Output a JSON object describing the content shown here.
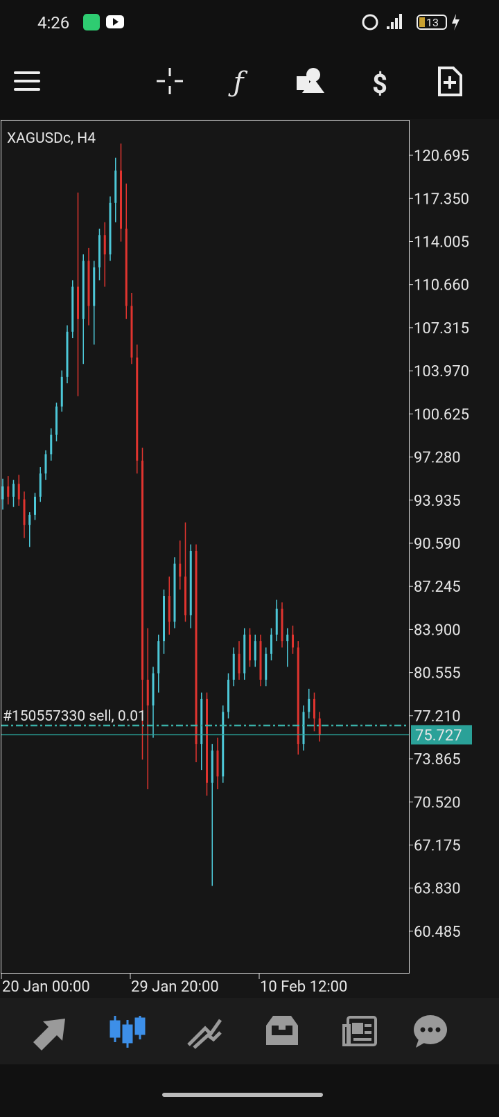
{
  "status_bar": {
    "time": "4:26",
    "battery": "13"
  },
  "chart_data": {
    "type": "candlestick",
    "title": "XAGUSDc, H4",
    "categories": [
      "20 Jan 00:00",
      null,
      null,
      null,
      null,
      null,
      null,
      null,
      null,
      null,
      null,
      null,
      null,
      null,
      null,
      null,
      null,
      null,
      null,
      null,
      null,
      null,
      null,
      null,
      "29 Jan 20:00",
      null,
      null,
      null,
      null,
      null,
      null,
      null,
      null,
      null,
      null,
      null,
      null,
      null,
      null,
      null,
      null,
      null,
      null,
      null,
      null,
      null,
      null,
      null,
      "10 Feb 12:00",
      null,
      null,
      null,
      null,
      null,
      null,
      null,
      null,
      null,
      null,
      null
    ],
    "open": [
      94.0,
      95.0,
      94.2,
      95.2,
      94.0,
      92.0,
      92.8,
      94.2,
      96.0,
      97.5,
      99.0,
      101.2,
      103.5,
      107.0,
      110.5,
      108.0,
      112.5,
      109.0,
      112.0,
      114.5,
      113.0,
      117.0,
      119.5,
      115.0,
      109.0,
      105.0,
      97.0,
      80.0,
      78.0,
      80.5,
      83.0,
      86.5,
      84.5,
      89.0,
      88.0,
      85.0,
      90.0,
      75.0,
      78.5,
      72.0,
      74.5,
      72.5,
      77.5,
      80.0,
      82.0,
      80.5,
      83.5,
      81.5,
      83.0,
      80.0,
      82.0,
      83.5,
      85.5,
      83.0,
      83.5,
      82.5,
      75.0,
      77.5,
      78.5,
      77.0
    ],
    "high": [
      95.6,
      95.8,
      95.5,
      95.9,
      94.6,
      93.0,
      94.5,
      96.5,
      97.8,
      99.5,
      101.5,
      104.0,
      107.5,
      111.0,
      117.8,
      113.0,
      113.5,
      112.5,
      115.0,
      115.5,
      117.5,
      120.5,
      121.6,
      118.5,
      110.0,
      106.0,
      98.0,
      84.0,
      81.0,
      83.5,
      87.0,
      88.0,
      89.5,
      90.8,
      92.2,
      90.5,
      90.5,
      79.0,
      79.0,
      75.0,
      75.5,
      78.0,
      80.5,
      82.5,
      83.0,
      84.0,
      84.0,
      83.5,
      83.5,
      82.5,
      84.0,
      86.2,
      86.0,
      84.0,
      84.2,
      83.0,
      78.0,
      79.3,
      79.0,
      77.5
    ],
    "low": [
      93.2,
      93.6,
      93.4,
      93.5,
      91.0,
      90.3,
      92.4,
      93.8,
      95.5,
      97.0,
      98.5,
      100.8,
      103.0,
      106.5,
      102.0,
      104.5,
      107.5,
      106.0,
      111.0,
      110.5,
      112.5,
      115.5,
      114.0,
      108.0,
      104.5,
      96.0,
      73.8,
      71.5,
      75.5,
      79.0,
      82.0,
      83.5,
      84.0,
      87.0,
      84.5,
      84.0,
      73.6,
      73.0,
      71.0,
      64.0,
      71.5,
      72.0,
      77.0,
      79.5,
      80.0,
      80.0,
      81.0,
      81.0,
      79.5,
      79.5,
      81.5,
      83.0,
      82.5,
      81.0,
      82.0,
      74.2,
      74.5,
      77.0,
      76.0,
      75.2
    ],
    "close": [
      95.0,
      94.2,
      95.2,
      94.0,
      92.0,
      92.8,
      94.2,
      96.0,
      97.5,
      99.0,
      101.2,
      103.5,
      107.0,
      110.5,
      108.0,
      112.5,
      109.0,
      112.0,
      114.5,
      113.0,
      117.0,
      119.5,
      115.0,
      109.0,
      105.0,
      97.0,
      80.0,
      78.0,
      80.5,
      83.0,
      86.5,
      84.5,
      89.0,
      88.0,
      85.0,
      90.0,
      75.0,
      78.5,
      72.0,
      74.5,
      72.5,
      77.5,
      80.0,
      82.0,
      80.5,
      83.5,
      81.5,
      83.0,
      80.0,
      82.0,
      83.5,
      85.5,
      83.0,
      83.5,
      82.5,
      75.0,
      77.5,
      78.5,
      77.0,
      75.727
    ],
    "up_color": "#4dc8d8",
    "down_color": "#e0342f",
    "ylim": [
      57.2,
      123.44
    ],
    "yticks": [
      120.695,
      {
        "value": 117.35,
        "label": "117.350"
      },
      114.005,
      {
        "value": 110.66,
        "label": "110.660"
      },
      107.315,
      {
        "value": 103.97,
        "label": "103.970"
      },
      100.625,
      {
        "value": 97.28,
        "label": "97.280"
      },
      93.935,
      {
        "value": 90.59,
        "label": "90.590"
      },
      87.245,
      {
        "value": 83.9,
        "label": "83.900"
      },
      80.555,
      {
        "value": 77.21,
        "label": "77.210"
      },
      73.865,
      {
        "value": 70.52,
        "label": "70.520"
      },
      67.175,
      {
        "value": 63.83,
        "label": "63.830"
      },
      60.485
    ],
    "order": {
      "label": "#150557330 sell, 0.01",
      "price": 76.45,
      "color": "#3ab0a8"
    },
    "current_price": {
      "value": 75.727,
      "color": "#2aa198"
    }
  }
}
